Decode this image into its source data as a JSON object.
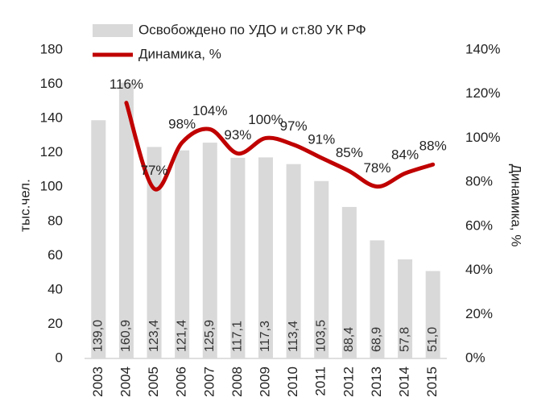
{
  "chart_data": {
    "type": "combo",
    "ylabel": "тыс.чел.",
    "y2label": "Динамика, %",
    "categories": [
      "2003",
      "2004",
      "2005",
      "2006",
      "2007",
      "2008",
      "2009",
      "2010",
      "2011",
      "2012",
      "2013",
      "2014",
      "2015"
    ],
    "series": [
      {
        "name": "Освобождено по УДО и ст.80 УК РФ",
        "type": "bar",
        "color": "#d9d9d9",
        "values": [
          139.0,
          160.9,
          123.4,
          121.4,
          125.9,
          117.1,
          117.3,
          113.4,
          103.5,
          88.4,
          68.9,
          57.8,
          51.0
        ],
        "value_labels": [
          "139,0",
          "160,9",
          "123,4",
          "121,4",
          "125,9",
          "117,1",
          "117,3",
          "113,4",
          "103,5",
          "88,4",
          "68,9",
          "57,8",
          "51,0"
        ]
      },
      {
        "name": "Динамика, %",
        "type": "line",
        "axis": "y2",
        "color": "#c00000",
        "values": [
          null,
          116,
          77,
          98,
          104,
          93,
          100,
          97,
          91,
          85,
          78,
          84,
          88
        ],
        "value_labels": [
          null,
          "116%",
          "77%",
          "98%",
          "104%",
          "93%",
          "100%",
          "97%",
          "91%",
          "85%",
          "78%",
          "84%",
          "88%"
        ]
      }
    ],
    "ylim": [
      0,
      180
    ],
    "yticks": [
      0,
      20,
      40,
      60,
      80,
      100,
      120,
      140,
      160,
      180
    ],
    "y2lim": [
      0,
      140
    ],
    "y2ticks": [
      {
        "value": 0,
        "label": "0%"
      },
      {
        "value": 20,
        "label": "20%"
      },
      {
        "value": 40,
        "label": "40%"
      },
      {
        "value": 60,
        "label": "60%"
      },
      {
        "value": 80,
        "label": "80%"
      },
      {
        "value": 100,
        "label": "100%"
      },
      {
        "value": 120,
        "label": "120%"
      },
      {
        "value": 140,
        "label": "140%"
      }
    ],
    "grid": false,
    "legend": "top"
  }
}
